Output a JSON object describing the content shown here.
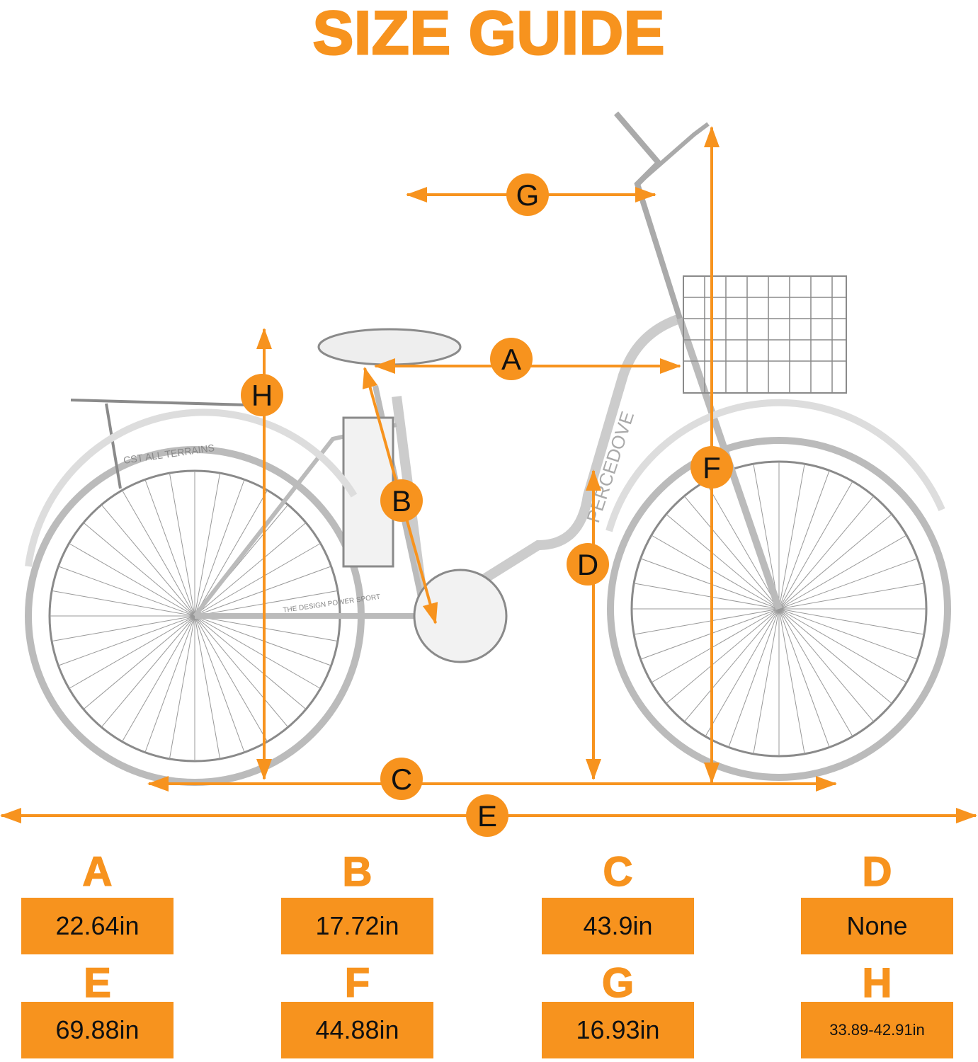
{
  "title": "SIZE GUIDE",
  "accent_color": "#F7931E",
  "bike_lettering": {
    "brand": "PERCEDOVE",
    "tire": "CST ALL TERRAINS",
    "frame_text": "THE DESIGN POWER SPORT"
  },
  "markers": [
    "A",
    "B",
    "C",
    "D",
    "E",
    "F",
    "G",
    "H"
  ],
  "measurements": [
    {
      "key": "A",
      "value": "22.64in"
    },
    {
      "key": "B",
      "value": "17.72in"
    },
    {
      "key": "C",
      "value": "43.9in"
    },
    {
      "key": "D",
      "value": "None"
    },
    {
      "key": "E",
      "value": "69.88in"
    },
    {
      "key": "F",
      "value": "44.88in"
    },
    {
      "key": "G",
      "value": "16.93in"
    },
    {
      "key": "H",
      "value": "33.89-42.91in"
    }
  ]
}
